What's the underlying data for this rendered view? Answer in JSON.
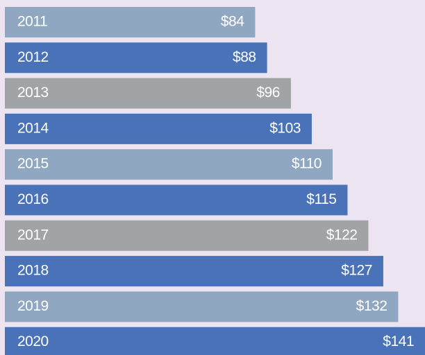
{
  "chart_data": {
    "type": "barh",
    "categories": [
      "2011",
      "2012",
      "2013",
      "2014",
      "2015",
      "2016",
      "2017",
      "2018",
      "2019",
      "2020"
    ],
    "values": [
      84,
      88,
      96,
      103,
      110,
      115,
      122,
      127,
      132,
      141
    ],
    "value_labels": [
      "$84",
      "$88",
      "$96",
      "$103",
      "$110",
      "$115",
      "$122",
      "$127",
      "$132",
      "$141"
    ],
    "colors": [
      "#8fa7c0",
      "#4a72b8",
      "#a1a4a7",
      "#4a72b8",
      "#8fa7c0",
      "#4a72b8",
      "#a1a4a7",
      "#4a72b8",
      "#8fa7c0",
      "#4a72b8"
    ]
  }
}
